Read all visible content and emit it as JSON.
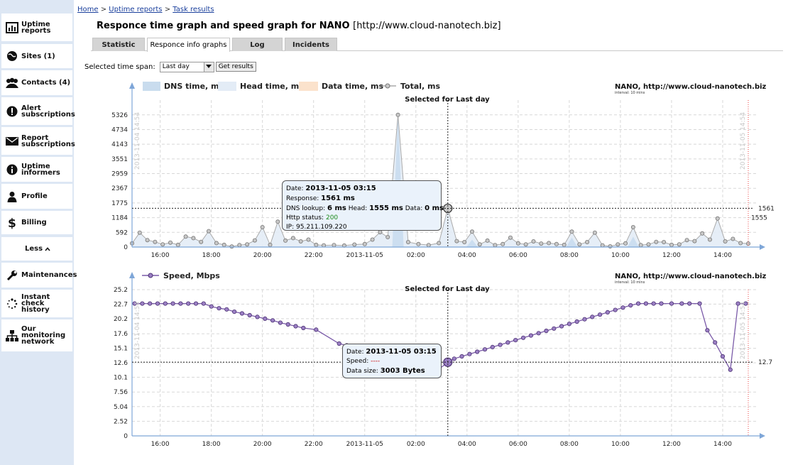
{
  "sidebar": {
    "items": [
      {
        "label": "Uptime reports",
        "icon": "chart-icon"
      },
      {
        "label": "Sites (1)",
        "icon": "globe-icon"
      },
      {
        "label": "Contacts (4)",
        "icon": "contacts-icon"
      },
      {
        "label": "Alert subscriptions",
        "icon": "alert-icon"
      },
      {
        "label": "Report subscriptions",
        "icon": "mail-icon"
      },
      {
        "label": "Uptime informers",
        "icon": "info-icon"
      },
      {
        "label": "Profile",
        "icon": "person-icon"
      },
      {
        "label": "Billing",
        "icon": "dollar-icon"
      },
      {
        "label": "Less",
        "icon": "chevron-up-icon"
      },
      {
        "label": "Maintenances",
        "icon": "wrench-icon"
      },
      {
        "label": "Instant check history",
        "icon": "spinner-icon"
      },
      {
        "label": "Our monitoring network",
        "icon": "network-icon"
      }
    ]
  },
  "breadcrumb": {
    "home": "Home",
    "sep": ">",
    "reports": "Uptime reports",
    "current": "Task results"
  },
  "page": {
    "title": "Responce time graph and speed graph for NANO",
    "url": "[http://www.cloud-nanotech.biz]"
  },
  "tabs": [
    "Statistic",
    "Responce info graphs",
    "Log",
    "Incidents"
  ],
  "timespan": {
    "label": "Selected time span:",
    "value": "Last day",
    "button": "Get results"
  },
  "chart_data": [
    {
      "type": "area",
      "title": "Selected for Last day",
      "site_label": "NANO, http://www.cloud-nanotech.biz",
      "interval_label": "interval: 10 mins",
      "legend": [
        "DNS time, ms",
        "Head time, ms",
        "Data time, ms",
        "Total, ms"
      ],
      "colors": {
        "dns": "#c9dcee",
        "head": "#e3ecf6",
        "data": "#fbe2cc",
        "total": "#b8b8b8"
      },
      "y_ticks": [
        0,
        592,
        1184,
        1775,
        2367,
        2959,
        3551,
        4143,
        4734,
        5326
      ],
      "ylim": [
        0,
        5920
      ],
      "x_ticks": [
        "16:00",
        "18:00",
        "20:00",
        "22:00",
        "2013-11-05",
        "02:00",
        "04:00",
        "06:00",
        "08:00",
        "10:00",
        "12:00",
        "14:00"
      ],
      "x_tick_hours": [
        16,
        18,
        20,
        22,
        24,
        26,
        28,
        30,
        32,
        34,
        36,
        38
      ],
      "x_range_hours": [
        14.9,
        39.0
      ],
      "start_label": "2013-11-04 14:54",
      "end_label": "2013-11-05 14:54",
      "crosshair": {
        "hour": 27.25,
        "value": 1561,
        "label": "1561"
      },
      "side_value": {
        "value": 1555,
        "label": "1555"
      },
      "total": [
        [
          14.9,
          150
        ],
        [
          15.2,
          580
        ],
        [
          15.5,
          280
        ],
        [
          15.8,
          210
        ],
        [
          16.1,
          110
        ],
        [
          16.4,
          180
        ],
        [
          16.7,
          90
        ],
        [
          17.0,
          420
        ],
        [
          17.3,
          360
        ],
        [
          17.6,
          210
        ],
        [
          17.9,
          640
        ],
        [
          18.2,
          160
        ],
        [
          18.5,
          90
        ],
        [
          18.8,
          20
        ],
        [
          19.1,
          80
        ],
        [
          19.4,
          110
        ],
        [
          19.7,
          270
        ],
        [
          20.0,
          800
        ],
        [
          20.3,
          90
        ],
        [
          20.6,
          1020
        ],
        [
          20.9,
          260
        ],
        [
          21.2,
          360
        ],
        [
          21.5,
          230
        ],
        [
          21.8,
          300
        ],
        [
          22.1,
          90
        ],
        [
          22.4,
          70
        ],
        [
          22.8,
          80
        ],
        [
          23.2,
          60
        ],
        [
          23.6,
          100
        ],
        [
          24.0,
          120
        ],
        [
          24.3,
          300
        ],
        [
          24.6,
          600
        ],
        [
          24.9,
          400
        ],
        [
          25.3,
          5326
        ],
        [
          25.7,
          200
        ],
        [
          26.1,
          120
        ],
        [
          26.5,
          80
        ],
        [
          26.9,
          160
        ],
        [
          27.25,
          1561
        ],
        [
          27.6,
          240
        ],
        [
          27.9,
          200
        ],
        [
          28.2,
          620
        ],
        [
          28.5,
          110
        ],
        [
          28.8,
          260
        ],
        [
          29.1,
          80
        ],
        [
          29.4,
          120
        ],
        [
          29.7,
          380
        ],
        [
          30.0,
          150
        ],
        [
          30.3,
          110
        ],
        [
          30.6,
          230
        ],
        [
          30.9,
          140
        ],
        [
          31.2,
          160
        ],
        [
          31.5,
          120
        ],
        [
          31.8,
          90
        ],
        [
          32.1,
          620
        ],
        [
          32.4,
          110
        ],
        [
          32.7,
          200
        ],
        [
          33.0,
          580
        ],
        [
          33.3,
          70
        ],
        [
          33.6,
          30
        ],
        [
          33.9,
          110
        ],
        [
          34.2,
          150
        ],
        [
          34.5,
          800
        ],
        [
          34.8,
          80
        ],
        [
          35.1,
          110
        ],
        [
          35.4,
          210
        ],
        [
          35.7,
          200
        ],
        [
          36.0,
          90
        ],
        [
          36.3,
          110
        ],
        [
          36.6,
          280
        ],
        [
          36.9,
          240
        ],
        [
          37.2,
          550
        ],
        [
          37.5,
          300
        ],
        [
          37.8,
          1150
        ],
        [
          38.1,
          230
        ],
        [
          38.4,
          330
        ],
        [
          38.7,
          160
        ],
        [
          39.0,
          140
        ]
      ],
      "series_dns_peaks": [
        [
          25.3,
          5326
        ],
        [
          28.2,
          300
        ],
        [
          32.1,
          380
        ],
        [
          34.5,
          420
        ]
      ]
    },
    {
      "type": "line",
      "title": "Selected for Last day",
      "site_label": "NANO, http://www.cloud-nanotech.biz",
      "interval_label": "interval: 10 mins",
      "legend": [
        "Speed, Mbps"
      ],
      "colors": {
        "speed": "#7a5aa8"
      },
      "y_ticks": [
        0,
        2.52,
        5.04,
        7.56,
        10.1,
        12.6,
        15.1,
        17.6,
        20.2,
        22.7,
        25.2
      ],
      "ylim": [
        0,
        25.2
      ],
      "x_ticks": [
        "16:00",
        "18:00",
        "20:00",
        "22:00",
        "2013-11-05",
        "02:00",
        "04:00",
        "06:00",
        "08:00",
        "10:00",
        "12:00",
        "14:00"
      ],
      "x_tick_hours": [
        16,
        18,
        20,
        22,
        24,
        26,
        28,
        30,
        32,
        34,
        36,
        38
      ],
      "x_range_hours": [
        14.9,
        39.0
      ],
      "start_label": "2013-11-04 14:54",
      "end_label": "2013-11-05 14:54",
      "crosshair": {
        "hour": 27.25,
        "value": 12.7,
        "label": "12.7"
      },
      "speed": [
        [
          15.0,
          22.8
        ],
        [
          15.3,
          22.8
        ],
        [
          15.6,
          22.8
        ],
        [
          15.9,
          22.8
        ],
        [
          16.2,
          22.8
        ],
        [
          16.5,
          22.8
        ],
        [
          16.8,
          22.8
        ],
        [
          17.1,
          22.8
        ],
        [
          17.4,
          22.8
        ],
        [
          17.7,
          22.8
        ],
        [
          18.0,
          22.3
        ],
        [
          18.3,
          22.0
        ],
        [
          18.6,
          21.8
        ],
        [
          18.9,
          21.4
        ],
        [
          19.2,
          21.1
        ],
        [
          19.5,
          20.8
        ],
        [
          19.8,
          20.5
        ],
        [
          20.1,
          20.2
        ],
        [
          20.4,
          19.9
        ],
        [
          20.7,
          19.5
        ],
        [
          21.0,
          19.2
        ],
        [
          21.3,
          18.9
        ],
        [
          21.6,
          18.6
        ],
        [
          22.1,
          18.3
        ],
        [
          23.0,
          15.9
        ],
        [
          23.3,
          15.6
        ],
        [
          23.6,
          15.3
        ],
        [
          23.9,
          15.0
        ],
        [
          24.2,
          14.6
        ],
        [
          24.5,
          14.3
        ],
        [
          24.8,
          14.0
        ],
        [
          25.1,
          13.6
        ],
        [
          25.4,
          13.3
        ],
        [
          25.7,
          13.0
        ],
        [
          26.0,
          12.6
        ],
        [
          26.3,
          12.2
        ],
        [
          26.6,
          11.8
        ],
        [
          26.9,
          11.5
        ],
        [
          27.25,
          12.7
        ],
        [
          27.5,
          13.3
        ],
        [
          27.8,
          13.7
        ],
        [
          28.1,
          14.1
        ],
        [
          28.4,
          14.5
        ],
        [
          28.7,
          14.9
        ],
        [
          29.0,
          15.3
        ],
        [
          29.3,
          15.7
        ],
        [
          29.6,
          16.1
        ],
        [
          29.9,
          16.5
        ],
        [
          30.2,
          16.9
        ],
        [
          30.5,
          17.3
        ],
        [
          30.8,
          17.7
        ],
        [
          31.1,
          18.1
        ],
        [
          31.4,
          18.5
        ],
        [
          31.7,
          18.9
        ],
        [
          32.0,
          19.3
        ],
        [
          32.3,
          19.7
        ],
        [
          32.6,
          20.1
        ],
        [
          32.9,
          20.5
        ],
        [
          33.2,
          20.9
        ],
        [
          33.5,
          21.3
        ],
        [
          33.8,
          21.7
        ],
        [
          34.1,
          22.1
        ],
        [
          34.4,
          22.5
        ],
        [
          34.7,
          22.8
        ],
        [
          35.0,
          22.8
        ],
        [
          35.3,
          22.8
        ],
        [
          35.6,
          22.8
        ],
        [
          36.0,
          22.8
        ],
        [
          36.4,
          22.8
        ],
        [
          36.7,
          22.8
        ],
        [
          37.1,
          22.8
        ],
        [
          37.4,
          18.2
        ],
        [
          37.7,
          16.1
        ],
        [
          38.0,
          13.7
        ],
        [
          38.3,
          11.4
        ],
        [
          38.6,
          22.8
        ],
        [
          38.9,
          22.8
        ],
        [
          39.2,
          22.8
        ],
        [
          39.5,
          22.8
        ],
        [
          39.8,
          22.8
        ],
        [
          40.1,
          22.8
        ],
        [
          40.4,
          22.8
        ],
        [
          40.7,
          22.8
        ]
      ]
    }
  ],
  "tooltip1": {
    "date_label": "Date:",
    "date": "2013-11-05 03:15",
    "response_label": "Response:",
    "response": "1561 ms",
    "dns_label": "DNS lookup:",
    "dns": "6 ms",
    "head_label": "Head:",
    "head": "1555 ms",
    "data_label": "Data:",
    "data": "0 ms",
    "http_label": "Http status:",
    "http": "200",
    "ip_label": "IP:",
    "ip": "95.211.109.220"
  },
  "tooltip2": {
    "date_label": "Date:",
    "date": "2013-11-05 03:15",
    "speed_label": "Speed:",
    "speed": "----",
    "size_label": "Data size:",
    "size": "3003 Bytes"
  }
}
